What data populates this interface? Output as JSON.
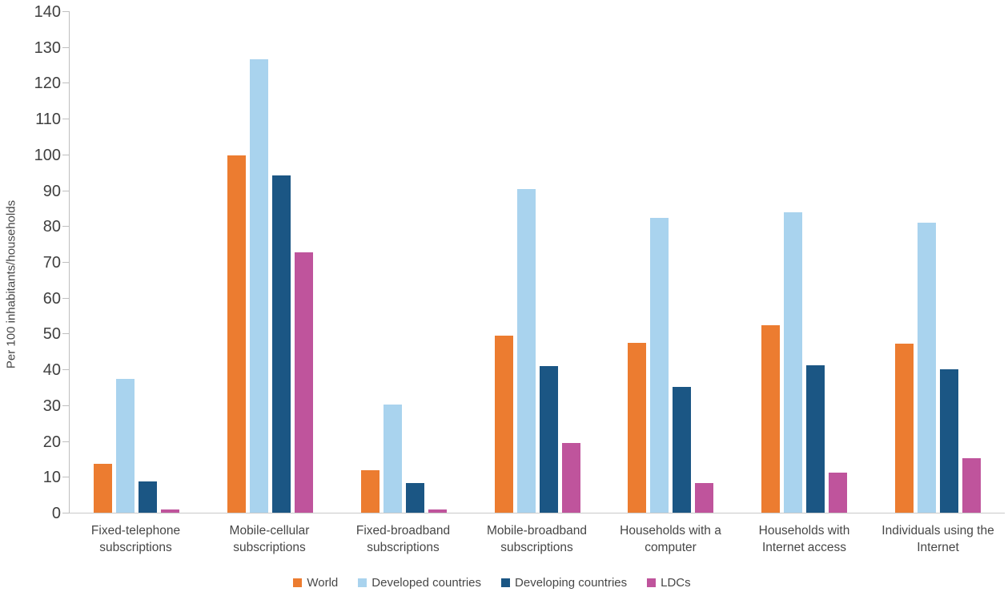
{
  "chart_data": {
    "type": "bar",
    "title": "",
    "xlabel": "",
    "ylabel": "Per 100 inhabitants/households",
    "ylim": [
      0,
      140
    ],
    "ytick_step": 10,
    "grid": false,
    "legend_position": "bottom",
    "axis_color": "#BFBFBF",
    "text_color": "#474747",
    "categories": [
      "Fixed-telephone subscriptions",
      "Mobile-cellular subscriptions",
      "Fixed-broadband subscriptions",
      "Mobile-broadband subscriptions",
      "Households with a computer",
      "Households with Internet access",
      "Individuals using the Internet"
    ],
    "series": [
      {
        "name": "World",
        "color": "#EC7C30",
        "values": [
          13.6,
          99.7,
          11.9,
          49.4,
          47.4,
          52.3,
          47.1
        ]
      },
      {
        "name": "Developed countries",
        "color": "#A9D3EE",
        "values": [
          37.4,
          126.7,
          30.1,
          90.3,
          82.3,
          83.8,
          81.0
        ]
      },
      {
        "name": "Developing countries",
        "color": "#1B5684",
        "values": [
          8.8,
          94.1,
          8.2,
          40.9,
          35.2,
          41.1,
          40.1
        ]
      },
      {
        "name": "LDCs",
        "color": "#BF549C",
        "values": [
          0.9,
          72.6,
          0.8,
          19.4,
          8.2,
          11.1,
          15.2
        ]
      }
    ]
  }
}
